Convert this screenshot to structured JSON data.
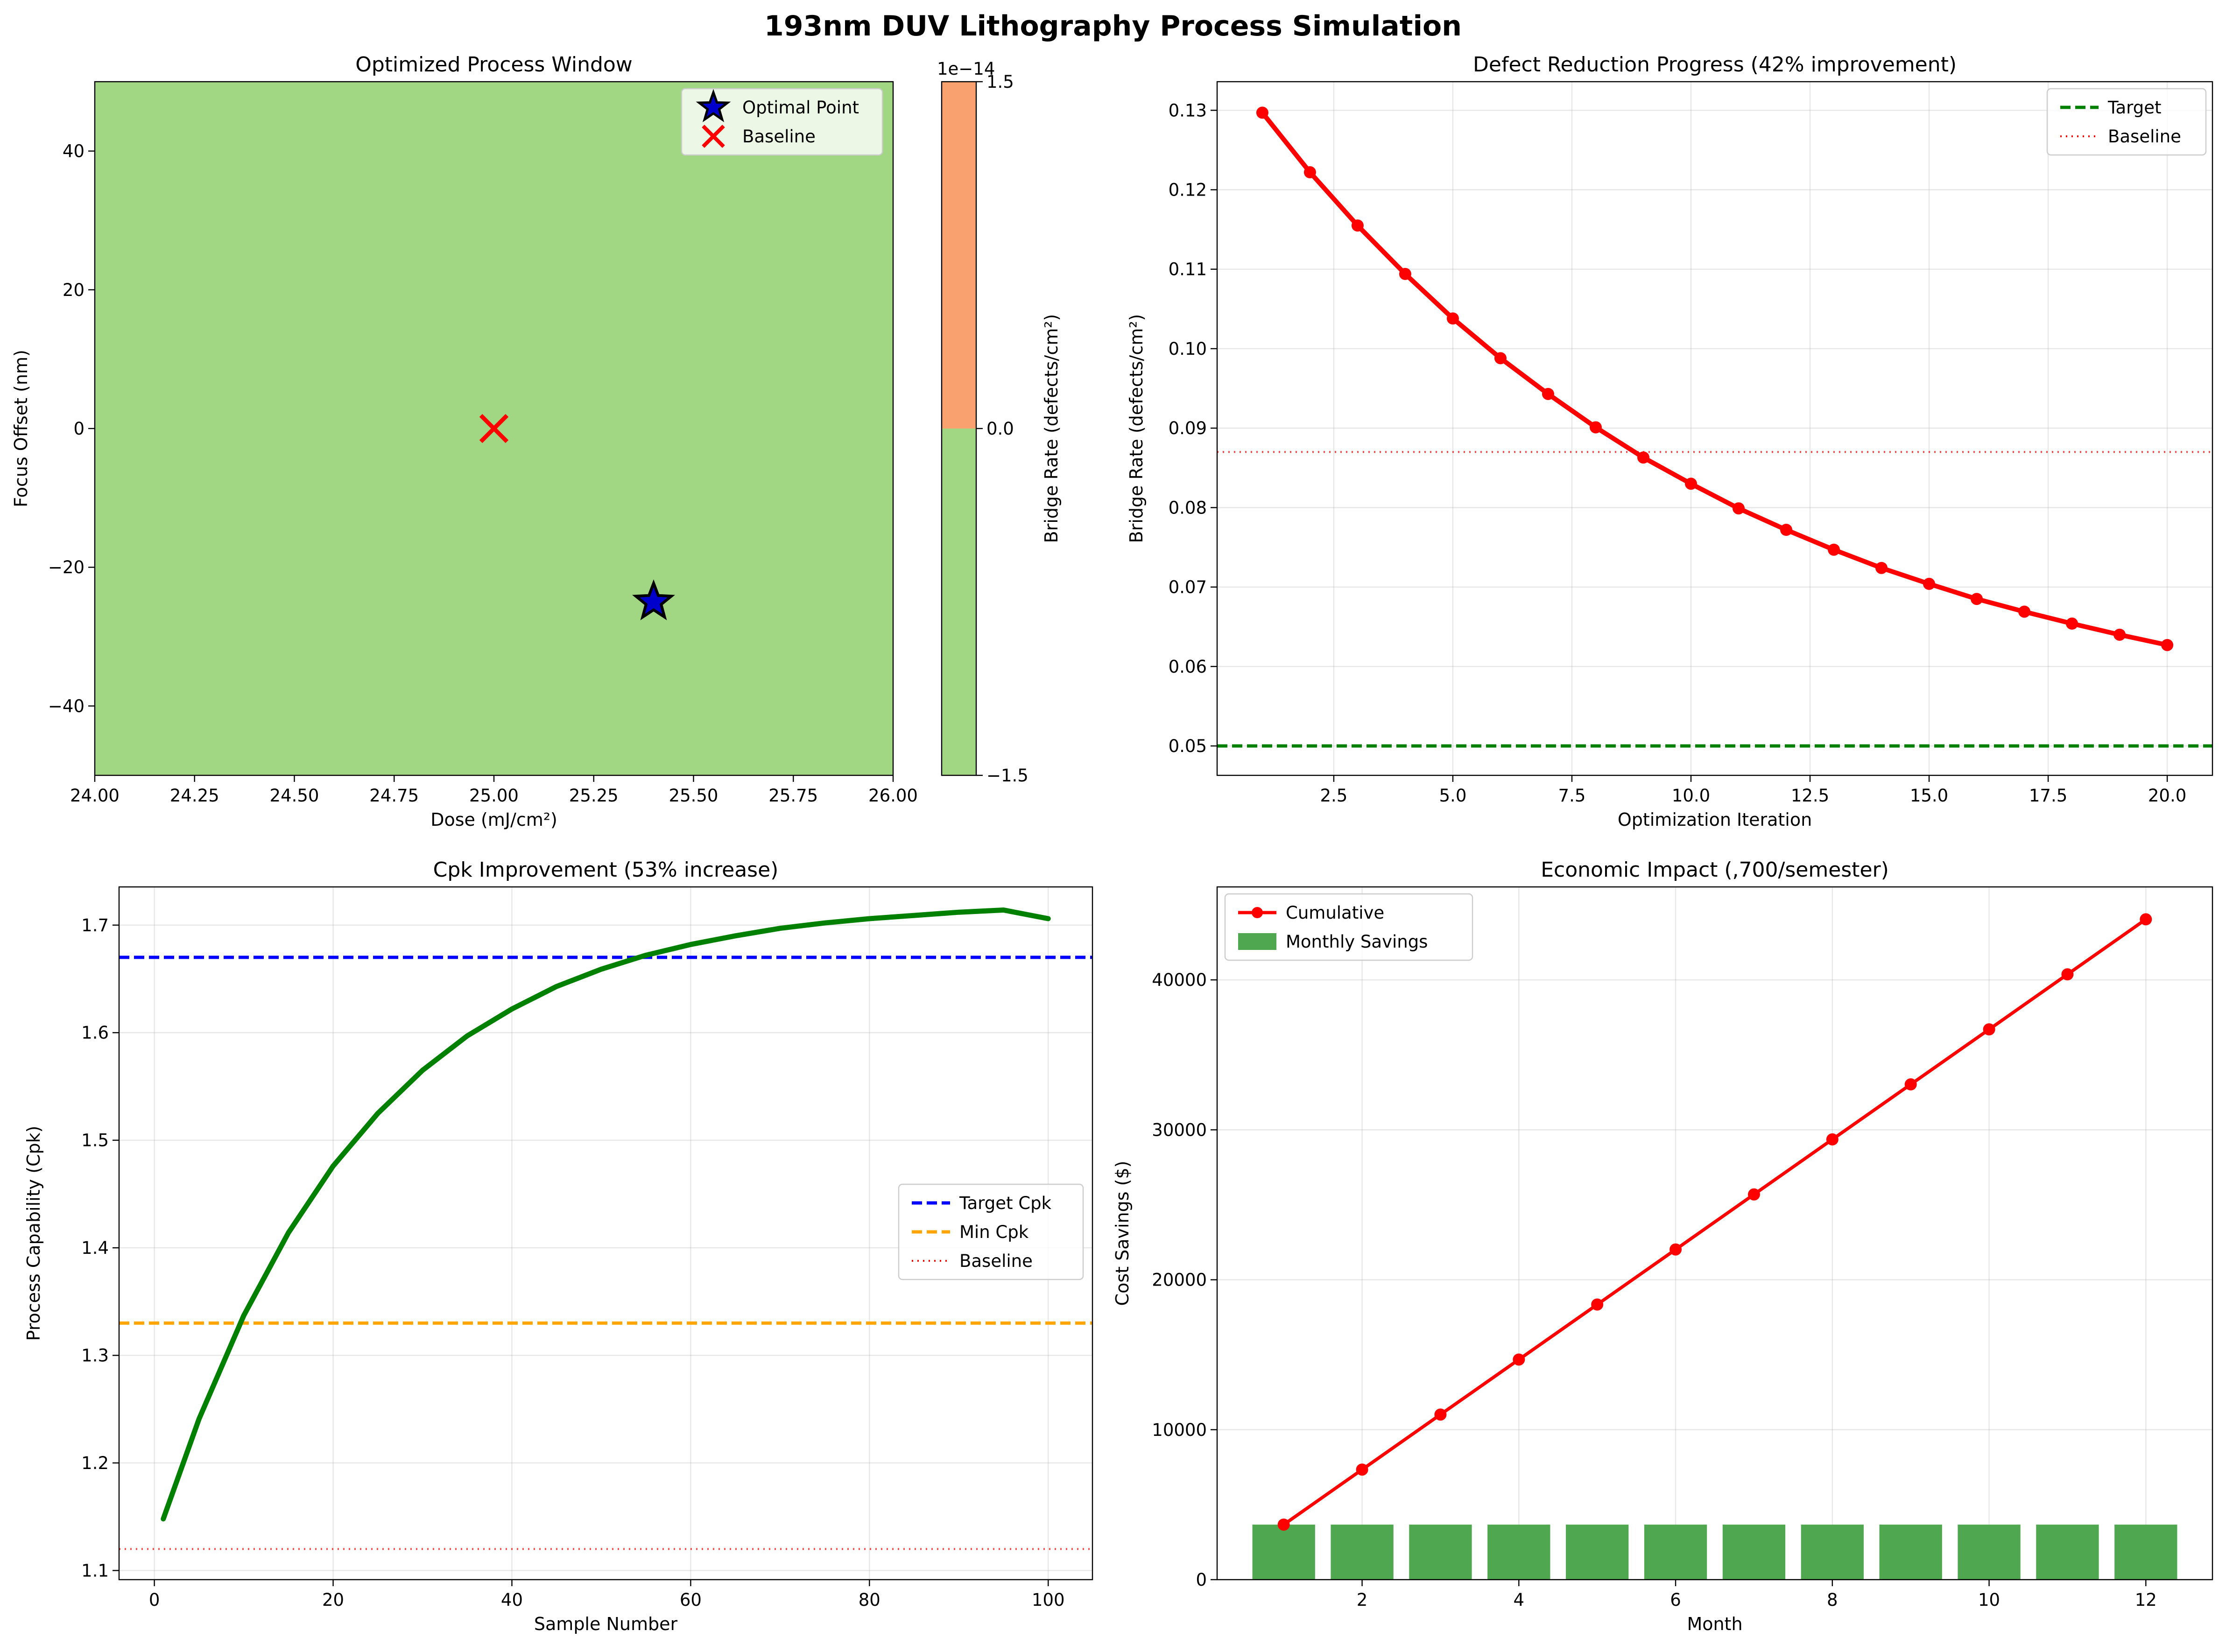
{
  "figure": {
    "title": "193nm DUV Lithography Process Simulation"
  },
  "chart_data": [
    {
      "type": "heatmap",
      "title": "Optimized Process Window",
      "xlabel": "Dose (mJ/cm²)",
      "ylabel": "Focus Offset (nm)",
      "xlim": [
        24.0,
        26.0
      ],
      "ylim": [
        -50,
        50
      ],
      "xticks": [
        "24.00",
        "24.25",
        "24.50",
        "24.75",
        "25.00",
        "25.25",
        "25.50",
        "25.75",
        "26.00"
      ],
      "yticks": [
        "−40",
        "−20",
        "0",
        "20",
        "40"
      ],
      "fill_color": "#a1d683",
      "points": [
        {
          "name": "Optimal Point",
          "x": 25.4,
          "y": -25,
          "marker": "star",
          "color": "#0000cc"
        },
        {
          "name": "Baseline",
          "x": 25.0,
          "y": 0,
          "marker": "x",
          "color": "#ff0000"
        }
      ],
      "legend": {
        "position": "top-right",
        "entries": [
          "Optimal Point",
          "Baseline"
        ]
      },
      "colorbar": {
        "label": "Bridge Rate (defects/cm²)",
        "offset_text": "1e−14",
        "ticks": [
          "−1.5",
          "0.0",
          "1.5"
        ],
        "colors": [
          "#a1d683",
          "#f9a26f"
        ]
      },
      "grid": false
    },
    {
      "type": "line",
      "title": "Defect Reduction Progress (42% improvement)",
      "xlabel": "Optimization Iteration",
      "ylabel": "Bridge Rate (defects/cm²)",
      "xlim": [
        0.05,
        20.95
      ],
      "ylim": [
        0.0463,
        0.1336
      ],
      "xticks": [
        "2.5",
        "5.0",
        "7.5",
        "10.0",
        "12.5",
        "15.0",
        "17.5",
        "20.0"
      ],
      "yticks": [
        "0.05",
        "0.06",
        "0.07",
        "0.08",
        "0.09",
        "0.10",
        "0.11",
        "0.12",
        "0.13"
      ],
      "series": [
        {
          "name": "",
          "color": "#ff0000",
          "x": [
            1,
            2,
            3,
            4,
            5,
            6,
            7,
            8,
            9,
            10,
            11,
            12,
            13,
            14,
            15,
            16,
            17,
            18,
            19,
            20
          ],
          "y": [
            0.1297,
            0.1222,
            0.1155,
            0.1094,
            0.1038,
            0.0988,
            0.0943,
            0.0901,
            0.0863,
            0.083,
            0.0799,
            0.0772,
            0.0747,
            0.0724,
            0.0704,
            0.0685,
            0.0669,
            0.0654,
            0.064,
            0.0627
          ]
        }
      ],
      "reference_lines": [
        {
          "name": "Target",
          "y": 0.05,
          "color": "#008000",
          "style": "dashed"
        },
        {
          "name": "Baseline",
          "y": 0.087,
          "color": "#ff0000",
          "style": "dotted"
        }
      ],
      "legend": {
        "position": "top-right",
        "entries": [
          "Target",
          "Baseline"
        ]
      },
      "grid": true
    },
    {
      "type": "line",
      "title": "Cpk Improvement (53% increase)",
      "xlabel": "Sample Number",
      "ylabel": "Process Capability (Cpk)",
      "xlim": [
        -3.95,
        104.95
      ],
      "ylim": [
        1.0915,
        1.7355
      ],
      "xticks": [
        "0",
        "20",
        "40",
        "60",
        "80",
        "100"
      ],
      "yticks": [
        "1.1",
        "1.2",
        "1.3",
        "1.4",
        "1.5",
        "1.6",
        "1.7"
      ],
      "series": [
        {
          "name": "",
          "color": "#008000",
          "x": [
            1,
            5,
            10,
            15,
            20,
            25,
            30,
            35,
            40,
            45,
            50,
            55,
            60,
            65,
            70,
            75,
            80,
            85,
            90,
            95,
            100
          ],
          "y": [
            1.148,
            1.241,
            1.337,
            1.414,
            1.476,
            1.525,
            1.565,
            1.597,
            1.622,
            1.643,
            1.659,
            1.672,
            1.682,
            1.69,
            1.697,
            1.702,
            1.706,
            1.709,
            1.712,
            1.714,
            1.706
          ]
        }
      ],
      "reference_lines": [
        {
          "name": "Target Cpk",
          "y": 1.67,
          "color": "#0000ff",
          "style": "dashed"
        },
        {
          "name": "Min Cpk",
          "y": 1.33,
          "color": "#ffa500",
          "style": "dashed"
        },
        {
          "name": "Baseline",
          "y": 1.12,
          "color": "#ff0000",
          "style": "dotted"
        }
      ],
      "legend": {
        "position": "center-right",
        "entries": [
          "Target Cpk",
          "Min Cpk",
          "Baseline"
        ]
      },
      "grid": true
    },
    {
      "type": "bar",
      "title": "Economic Impact (,700/semester)",
      "xlabel": "Month",
      "ylabel": "Cost Savings ($)",
      "xlim": [
        0.15,
        12.85
      ],
      "ylim": [
        0,
        46200
      ],
      "xticks": [
        "2",
        "4",
        "6",
        "8",
        "10",
        "12"
      ],
      "yticks": [
        "0",
        "10000",
        "20000",
        "30000",
        "40000"
      ],
      "categories": [
        1,
        2,
        3,
        4,
        5,
        6,
        7,
        8,
        9,
        10,
        11,
        12
      ],
      "series": [
        {
          "name": "Monthly Savings",
          "kind": "bar",
          "color": "#4fa84f",
          "values": [
            3670,
            3670,
            3670,
            3670,
            3670,
            3670,
            3670,
            3670,
            3670,
            3670,
            3670,
            3670
          ]
        },
        {
          "name": "Cumulative",
          "kind": "line",
          "color": "#ff0000",
          "values": [
            3670,
            7340,
            11010,
            14680,
            18350,
            22020,
            25690,
            29360,
            33030,
            36700,
            40370,
            44040
          ]
        }
      ],
      "legend": {
        "position": "top-left",
        "entries": [
          "Cumulative",
          "Monthly Savings"
        ]
      },
      "grid": true
    }
  ]
}
